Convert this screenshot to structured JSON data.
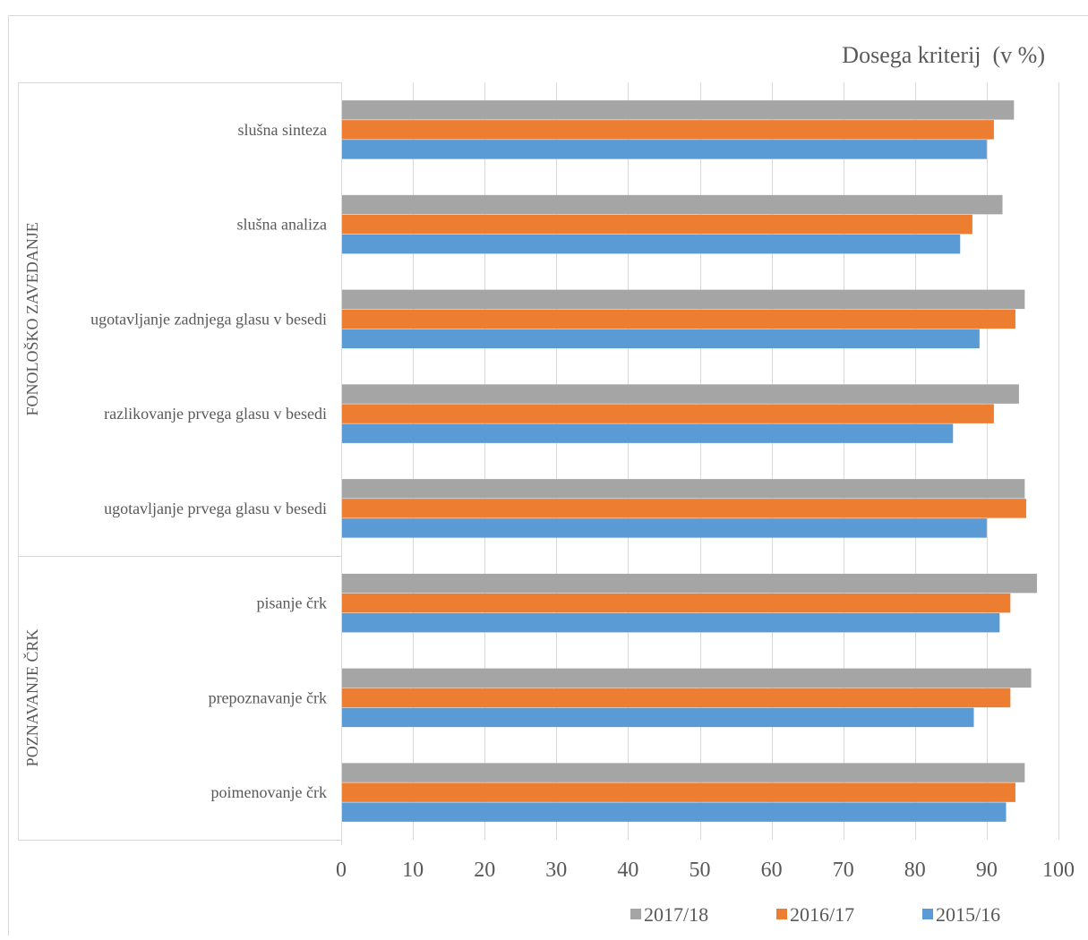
{
  "chart_data": {
    "type": "bar",
    "orientation": "horizontal",
    "title": "Dosega kriterij  (v %)",
    "xlim": [
      0,
      100
    ],
    "xticks": [
      0,
      10,
      20,
      30,
      40,
      50,
      60,
      70,
      80,
      90,
      100
    ],
    "grid": true,
    "legend_position": "bottom-right",
    "groups": [
      {
        "label": "FONOLOŠKO ZAVEDANJE",
        "categories": [
          "slušna sinteza",
          "slušna analiza",
          "ugotavljanje zadnjega glasu v besedi",
          "razlikovanje prvega glasu v besedi",
          "ugotavljanje prvega glasu v besedi"
        ]
      },
      {
        "label": "POZNAVANJE ČRK",
        "categories": [
          "pisanje črk",
          "prepoznavanje črk",
          "poimenovanje črk"
        ]
      }
    ],
    "categories": [
      "slušna sinteza",
      "slušna analiza",
      "ugotavljanje zadnjega glasu v besedi",
      "razlikovanje prvega glasu v besedi",
      "ugotavljanje prvega glasu v besedi",
      "pisanje črk",
      "prepoznavanje črk",
      "poimenovanje črk"
    ],
    "series": [
      {
        "name": "2017/18",
        "color": "#a5a5a5",
        "values": [
          93.8,
          92.2,
          95.3,
          94.5,
          95.3,
          97.0,
          96.2,
          95.3
        ]
      },
      {
        "name": "2016/17",
        "color": "#ed7d31",
        "values": [
          91.0,
          88.0,
          94.0,
          91.0,
          95.5,
          93.3,
          93.3,
          94.0
        ]
      },
      {
        "name": "2015/16",
        "color": "#5b9bd5",
        "values": [
          90.0,
          86.3,
          89.0,
          85.3,
          90.0,
          91.8,
          88.2,
          92.7
        ]
      }
    ]
  },
  "colors": {
    "grid": "#d9d9d9",
    "text": "#595959"
  }
}
